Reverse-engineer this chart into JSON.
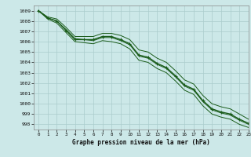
{
  "xlabel": "Graphe pression niveau de la mer (hPa)",
  "bg_color": "#cce8e8",
  "grid_color": "#aacccc",
  "line_color": "#1a5c1a",
  "ylim": [
    997.5,
    1009.5
  ],
  "xlim": [
    -0.5,
    23
  ],
  "yticks": [
    998,
    999,
    1000,
    1001,
    1002,
    1003,
    1004,
    1005,
    1006,
    1007,
    1008,
    1009
  ],
  "xticks": [
    0,
    1,
    2,
    3,
    4,
    5,
    6,
    7,
    8,
    9,
    10,
    11,
    12,
    13,
    14,
    15,
    16,
    17,
    18,
    19,
    20,
    21,
    22,
    23
  ],
  "series": [
    {
      "x": [
        0,
        1,
        2,
        3,
        4,
        5,
        6,
        7,
        8,
        9,
        10,
        11,
        12,
        13,
        14,
        15,
        16,
        17,
        18,
        19,
        20,
        21,
        22,
        23
      ],
      "y": [
        1009.0,
        1008.3,
        1008.0,
        1007.1,
        1006.2,
        1006.2,
        1006.2,
        1006.5,
        1006.5,
        1006.2,
        1005.8,
        1004.7,
        1004.5,
        1003.9,
        1003.5,
        1002.7,
        1001.8,
        1001.4,
        1000.3,
        999.5,
        999.2,
        999.0,
        998.5,
        998.1
      ],
      "marker": "+",
      "lw": 1.0
    },
    {
      "x": [
        0,
        1,
        2,
        3,
        4,
        5,
        6,
        7,
        8,
        9,
        10,
        11,
        12,
        13,
        14,
        15,
        16,
        17,
        18,
        19,
        20,
        21,
        22,
        23
      ],
      "y": [
        1009.0,
        1008.2,
        1007.8,
        1006.9,
        1006.0,
        1005.9,
        1005.8,
        1006.1,
        1006.0,
        1005.8,
        1005.3,
        1004.2,
        1004.0,
        1003.4,
        1003.0,
        1002.2,
        1001.3,
        1000.9,
        999.8,
        999.0,
        998.7,
        998.5,
        998.0,
        997.7
      ],
      "marker": null,
      "lw": 0.7
    },
    {
      "x": [
        0,
        1,
        2,
        3,
        4,
        5,
        6,
        7,
        8,
        9,
        10,
        11,
        12,
        13,
        14,
        15,
        16,
        17,
        18,
        19,
        20,
        21,
        22,
        23
      ],
      "y": [
        1009.0,
        1008.4,
        1008.2,
        1007.4,
        1006.5,
        1006.5,
        1006.5,
        1006.8,
        1006.8,
        1006.6,
        1006.2,
        1005.2,
        1005.0,
        1004.4,
        1004.0,
        1003.2,
        1002.3,
        1001.9,
        1000.8,
        1000.0,
        999.7,
        999.5,
        999.0,
        998.5
      ],
      "marker": null,
      "lw": 0.7
    },
    {
      "x": [
        0,
        1,
        2,
        3,
        4,
        5,
        6,
        7,
        8,
        9,
        10,
        11,
        12,
        13,
        14,
        15,
        16,
        17,
        18,
        19,
        20,
        21,
        22,
        23
      ],
      "y": [
        1009.0,
        1008.3,
        1008.0,
        1007.2,
        1006.3,
        1006.2,
        1006.1,
        1006.4,
        1006.4,
        1006.1,
        1005.7,
        1004.6,
        1004.4,
        1003.8,
        1003.4,
        1002.6,
        1001.7,
        1001.3,
        1000.2,
        999.4,
        999.1,
        998.9,
        998.4,
        998.0
      ],
      "marker": null,
      "lw": 0.7
    }
  ]
}
